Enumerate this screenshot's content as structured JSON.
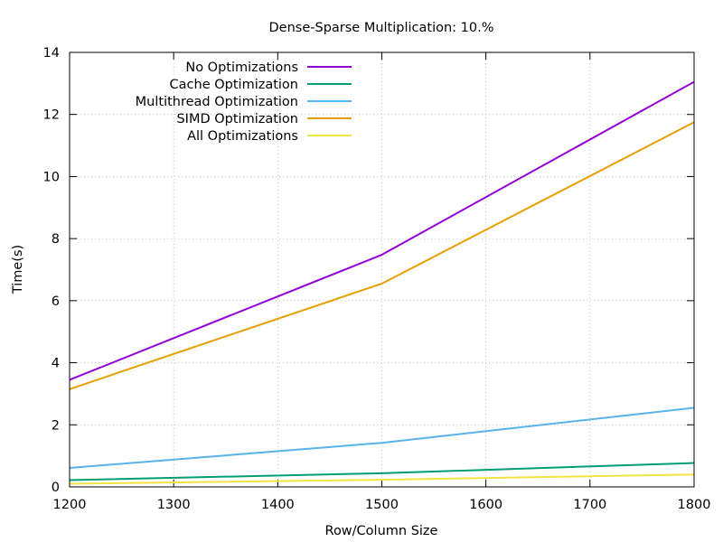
{
  "chart_data": {
    "type": "line",
    "title": "Dense-Sparse Multiplication: 10.%",
    "xlabel": "Row/Column Size",
    "ylabel": "Time(s)",
    "xlim": [
      1200,
      1800
    ],
    "ylim": [
      0,
      14
    ],
    "xticks": [
      1200,
      1300,
      1400,
      1500,
      1600,
      1700,
      1800
    ],
    "yticks": [
      0,
      2,
      4,
      6,
      8,
      10,
      12,
      14
    ],
    "grid": true,
    "legend_position": "top-left",
    "x": [
      1200,
      1500,
      1800
    ],
    "series": [
      {
        "name": "No Optimizations",
        "color": "#9400d3",
        "values": [
          3.45,
          7.48,
          13.05
        ]
      },
      {
        "name": "Cache Optimization",
        "color": "#009e73",
        "values": [
          0.22,
          0.44,
          0.77
        ]
      },
      {
        "name": "Multithread Optimization",
        "color": "#56b4e9",
        "values": [
          0.61,
          1.42,
          2.55
        ]
      },
      {
        "name": "SIMD Optimization",
        "color": "#e69f00",
        "values": [
          3.15,
          6.55,
          11.75
        ]
      },
      {
        "name": "All Optimizations",
        "color": "#f0e442",
        "values": [
          0.1,
          0.23,
          0.4
        ]
      }
    ]
  }
}
